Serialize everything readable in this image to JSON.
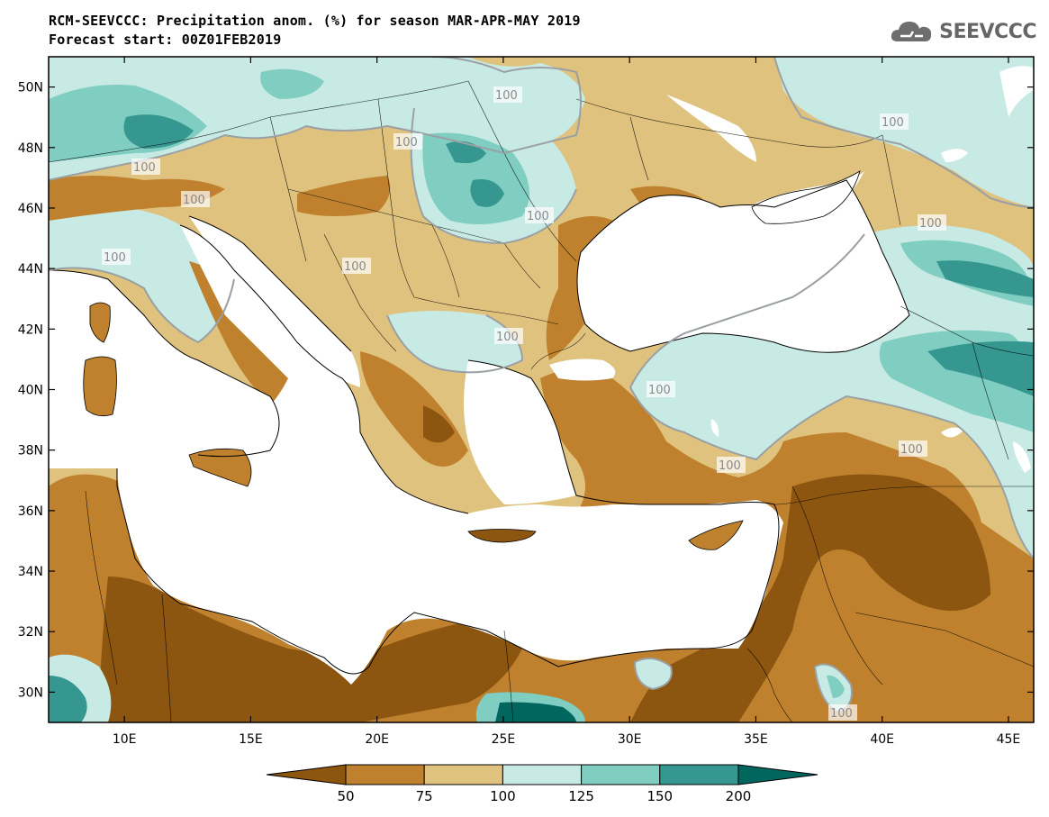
{
  "header": {
    "title_line1": "RCM-SEEVCCC: Precipitation anom. (%) for season MAR-APR-MAY 2019",
    "title_line2": "Forecast start: 00Z01FEB2019"
  },
  "brand": {
    "name": "SEEVCCC",
    "icon": "cloud-logo-icon"
  },
  "map": {
    "x_tick_labels": [
      "10E",
      "15E",
      "20E",
      "25E",
      "30E",
      "35E",
      "40E",
      "45E"
    ],
    "y_tick_labels": [
      "50N",
      "48N",
      "46N",
      "44N",
      "42N",
      "40N",
      "38N",
      "36N",
      "34N",
      "32N",
      "30N"
    ],
    "contour_label": "100"
  },
  "colorbar": {
    "labels": [
      "50",
      "75",
      "100",
      "125",
      "150",
      "200"
    ],
    "colors": [
      "#8c5510",
      "#bf812d",
      "#dfc27d",
      "#c7eae5",
      "#80cdc1",
      "#35978f",
      "#01665e"
    ]
  },
  "chart_data": {
    "type": "heatmap",
    "title": "RCM-SEEVCCC: Precipitation anom. (%) for season MAR-APR-MAY 2019",
    "subtitle": "Forecast start: 00Z01FEB2019",
    "xlim": [
      7,
      46
    ],
    "ylim": [
      29,
      51
    ],
    "x_ticks": [
      10,
      15,
      20,
      25,
      30,
      35,
      40,
      45
    ],
    "y_ticks": [
      30,
      32,
      34,
      36,
      38,
      40,
      42,
      44,
      46,
      48,
      50
    ],
    "levels": [
      50,
      75,
      100,
      125,
      150,
      200
    ],
    "colors": [
      "#8c5510",
      "#bf812d",
      "#dfc27d",
      "#c7eae5",
      "#80cdc1",
      "#35978f",
      "#01665e"
    ]
  }
}
